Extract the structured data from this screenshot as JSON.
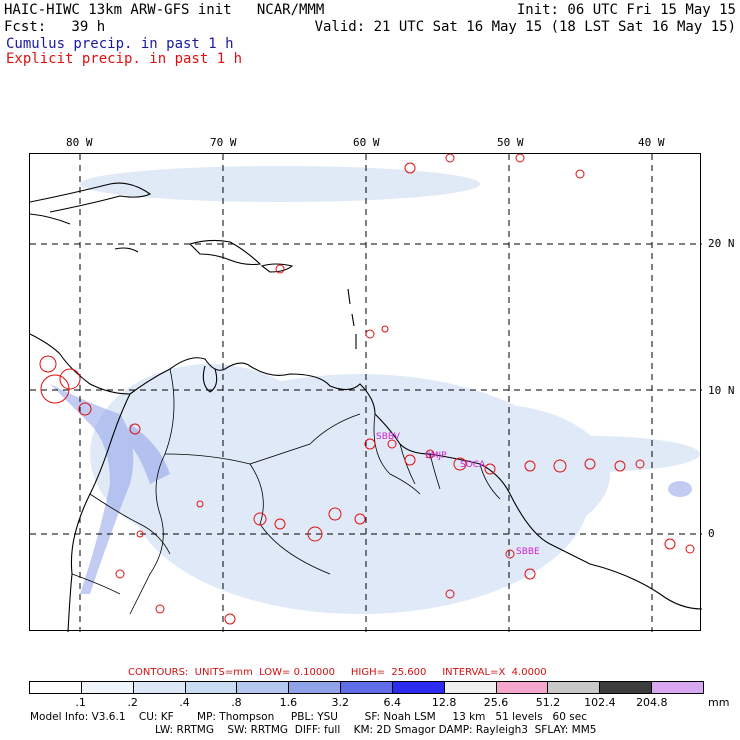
{
  "header": {
    "left_line1": "HAIC-HIWC 13km ARW-GFS init   NCAR/MMM",
    "left_line2": "Fcst:   39 h",
    "right_line1": "Init: 06 UTC Fri 15 May 15",
    "right_line2": "Valid: 21 UTC Sat 16 May 15 (18 LST Sat 16 May 15)",
    "legend_cumulus": "Cumulus precip. in past 1 h",
    "legend_explicit": "Explicit precip. in past 1 h"
  },
  "map": {
    "lon_labels": [
      "80 W",
      "70 W",
      "60 W",
      "50 W",
      "40 W"
    ],
    "lat_labels": [
      "20 N",
      "10 N",
      "0"
    ],
    "stations": [
      "SBBV",
      "SMJP",
      "SOCA",
      "SBBE"
    ]
  },
  "contours_line": "CONTOURS:  UNITS=mm  LOW= 0.10000     HIGH=  25.600     INTERVAL=X  4.0000",
  "colorbar": {
    "labels": [
      ".1",
      ".2",
      ".4",
      ".8",
      "1.6",
      "3.2",
      "6.4",
      "12.8",
      "25.6",
      "51.2",
      "102.4",
      "204.8"
    ],
    "unit": "mm",
    "colors": [
      "#ffffff",
      "#f0f4fb",
      "#dfe8f7",
      "#c8dcf2",
      "#b4c8f0",
      "#8fa2ea",
      "#5f6ee8",
      "#2b2cf0",
      "#f0f0f0",
      "#f5a6cc",
      "#c8c8c8",
      "#3c3c3c",
      "#d8a8f0"
    ]
  },
  "footer": {
    "line1": "Model Info: V3.6.1    CU: KF       MP: Thompson     PBL: YSU        SF: Noah LSM     13 km   51 levels   60 sec",
    "line2": "LW: RRTMG    SW: RRTMG  DIFF: full    KM: 2D Smagor DAMP: Rayleigh3  SFLAY: MM5"
  }
}
